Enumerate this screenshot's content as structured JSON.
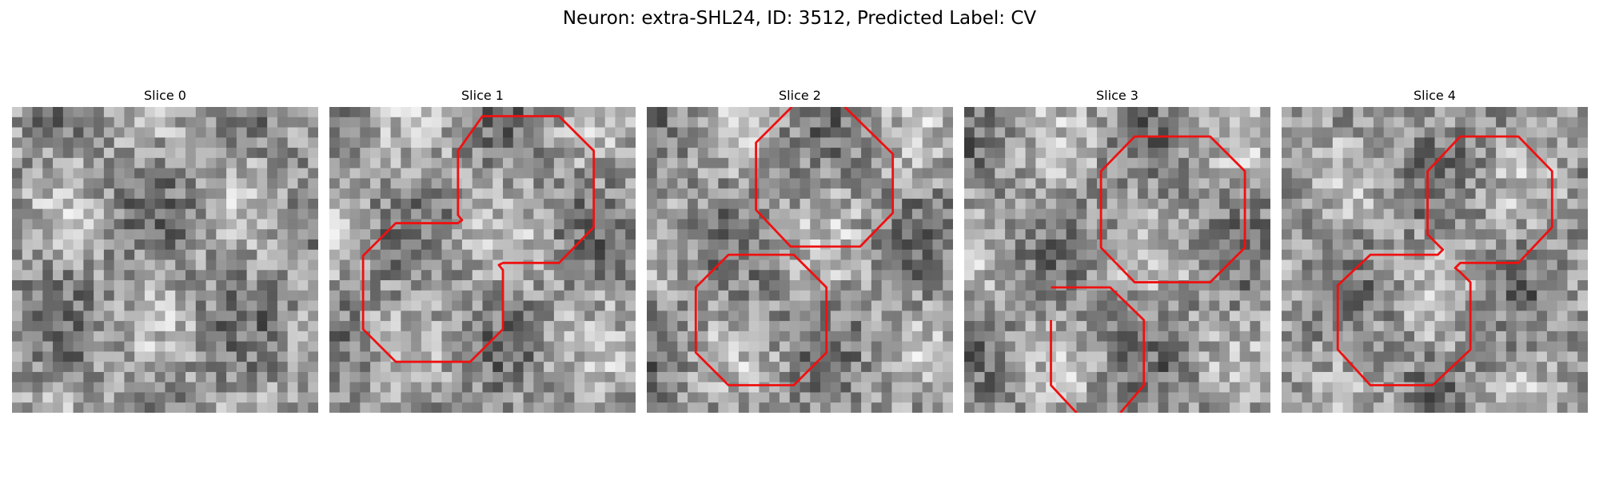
{
  "figure": {
    "title": "Neuron: extra-SHL24, ID: 3512, Predicted Label: CV"
  },
  "panels": [
    {
      "title": "Slice 0",
      "seed": 11,
      "contour": null
    },
    {
      "title": "Slice 1",
      "seed": 23,
      "contour": [
        [
          150,
          9
        ],
        [
          225,
          9
        ],
        [
          259,
          43
        ],
        [
          259,
          118
        ],
        [
          225,
          153
        ],
        [
          170,
          153
        ],
        [
          166,
          155
        ],
        [
          170,
          160
        ],
        [
          170,
          218
        ],
        [
          138,
          250
        ],
        [
          65,
          250
        ],
        [
          33,
          218
        ],
        [
          33,
          146
        ],
        [
          65,
          114
        ],
        [
          126,
          114
        ],
        [
          130,
          111
        ],
        [
          126,
          106
        ],
        [
          126,
          43
        ]
      ]
    },
    {
      "title": "Slice 2",
      "seed": 37,
      "contour": [
        [
          [
            142,
            0
          ],
          [
            107,
            35
          ],
          [
            107,
            101
          ],
          [
            141,
            137
          ],
          [
            209,
            137
          ],
          [
            241,
            104
          ],
          [
            241,
            46
          ],
          [
            194,
            0
          ]
        ],
        [
          [
            80,
            145
          ],
          [
            144,
            145
          ],
          [
            176,
            177
          ],
          [
            176,
            241
          ],
          [
            144,
            273
          ],
          [
            80,
            273
          ],
          [
            48,
            241
          ],
          [
            48,
            177
          ]
        ]
      ]
    },
    {
      "title": "Slice 3",
      "seed": 51,
      "contour": [
        [
          [
            167,
            29
          ],
          [
            241,
            29
          ],
          [
            275,
            63
          ],
          [
            275,
            138
          ],
          [
            241,
            172
          ],
          [
            167,
            172
          ],
          [
            134,
            138
          ],
          [
            134,
            63
          ]
        ],
        [
          [
            85,
            177
          ],
          [
            143,
            177
          ],
          [
            176,
            209
          ],
          [
            176,
            273
          ],
          [
            153,
            300
          ]
        ],
        [
          [
            110,
            300
          ],
          [
            85,
            273
          ],
          [
            85,
            209
          ]
        ]
      ]
    },
    {
      "title": "Slice 4",
      "seed": 68,
      "contour": [
        [
          175,
          29
        ],
        [
          232,
          29
        ],
        [
          265,
          63
        ],
        [
          265,
          118
        ],
        [
          232,
          153
        ],
        [
          175,
          153
        ],
        [
          170,
          158
        ],
        [
          175,
          162
        ],
        [
          185,
          172
        ],
        [
          185,
          238
        ],
        [
          148,
          273
        ],
        [
          87,
          273
        ],
        [
          55,
          238
        ],
        [
          55,
          175
        ],
        [
          87,
          145
        ],
        [
          153,
          145
        ],
        [
          158,
          140
        ],
        [
          143,
          125
        ],
        [
          143,
          63
        ]
      ]
    }
  ],
  "colors": {
    "contour": "#ee1111",
    "background": "#ffffff"
  }
}
